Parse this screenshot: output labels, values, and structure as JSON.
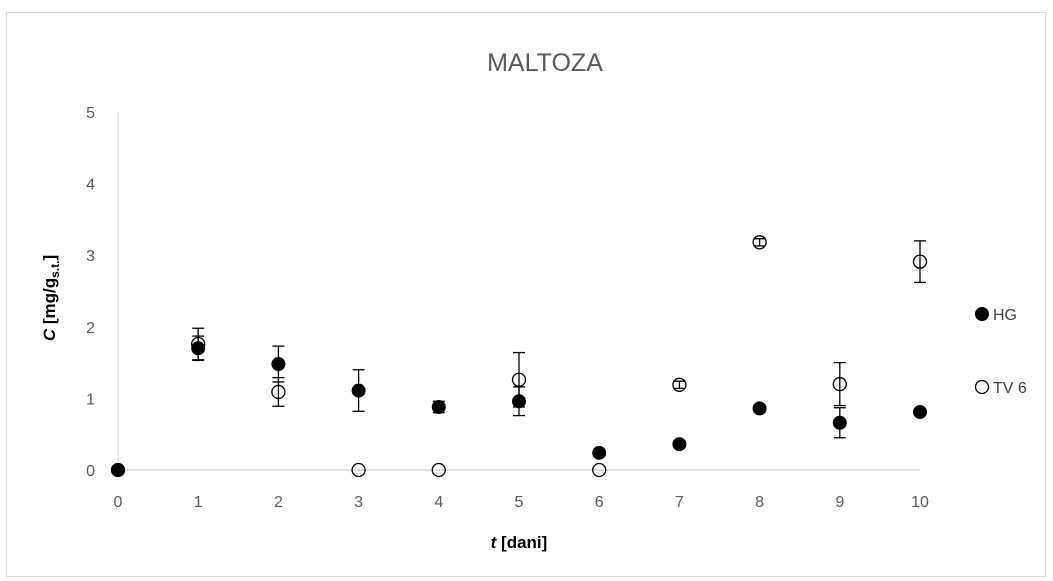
{
  "chart_data": {
    "type": "scatter",
    "title": "MALTOZA",
    "xlabel": {
      "italic": "t",
      "rest": " [dani]"
    },
    "ylabel": {
      "italic": "C",
      "rest": " [mg/g",
      "sub": "s.t.",
      "close": "]"
    },
    "xlim": [
      0,
      10
    ],
    "ylim": [
      0,
      5
    ],
    "xticks": [
      "0",
      "1",
      "2",
      "3",
      "4",
      "5",
      "6",
      "7",
      "8",
      "9",
      "10"
    ],
    "yticks": [
      "0",
      "1",
      "2",
      "3",
      "4",
      "5"
    ],
    "grid": false,
    "legend_position": "right",
    "series": [
      {
        "name": "HG",
        "marker": "filled-circle",
        "color": "#000000",
        "x": [
          0,
          1,
          2,
          3,
          4,
          5,
          6,
          7,
          8,
          9,
          10
        ],
        "y": [
          0,
          1.7,
          1.48,
          1.11,
          0.88,
          0.96,
          0.24,
          0.36,
          0.86,
          0.66,
          0.81
        ],
        "err": [
          0,
          0.17,
          0.25,
          0.29,
          0.08,
          0.2,
          0,
          0,
          0.05,
          0.21,
          0
        ]
      },
      {
        "name": "TV 6",
        "marker": "open-circle",
        "color": "#000000",
        "x": [
          0,
          1,
          2,
          3,
          4,
          5,
          6,
          7,
          8,
          9,
          10
        ],
        "y": [
          0,
          1.76,
          1.09,
          0,
          0,
          1.26,
          0,
          1.19,
          3.18,
          1.2,
          2.91
        ],
        "err": [
          0,
          0.22,
          0.2,
          0,
          0,
          0.38,
          0,
          0.05,
          0.05,
          0.3,
          0.29
        ]
      }
    ]
  }
}
